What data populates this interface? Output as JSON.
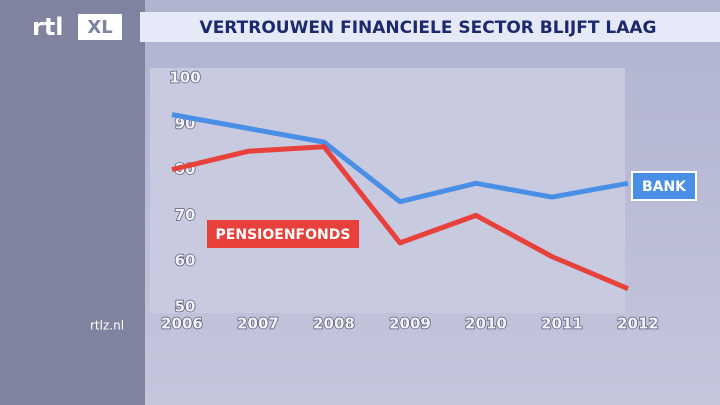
{
  "branding": {
    "logo": "rtl",
    "logo_badge": "XL",
    "site": "rtlz.nl"
  },
  "chart_data": {
    "type": "line",
    "title": "VERTROUWEN FINANCIELE SECTOR BLIJFT LAAG",
    "x": [
      2006,
      2007,
      2008,
      2009,
      2010,
      2011,
      2012
    ],
    "xlim": [
      2006,
      2012
    ],
    "xticks": [
      2006,
      2007,
      2008,
      2009,
      2010,
      2011,
      2012
    ],
    "ylim": [
      50,
      100
    ],
    "yticks": [
      50,
      60,
      70,
      80,
      90,
      100
    ],
    "series": [
      {
        "name": "BANK",
        "color": "#4a8fe6",
        "values": [
          92,
          89,
          86,
          73,
          77,
          74,
          77
        ]
      },
      {
        "name": "PENSIOENFONDS",
        "color": "#e8403a",
        "values": [
          80,
          84,
          85,
          64,
          70,
          61,
          54
        ]
      }
    ]
  }
}
